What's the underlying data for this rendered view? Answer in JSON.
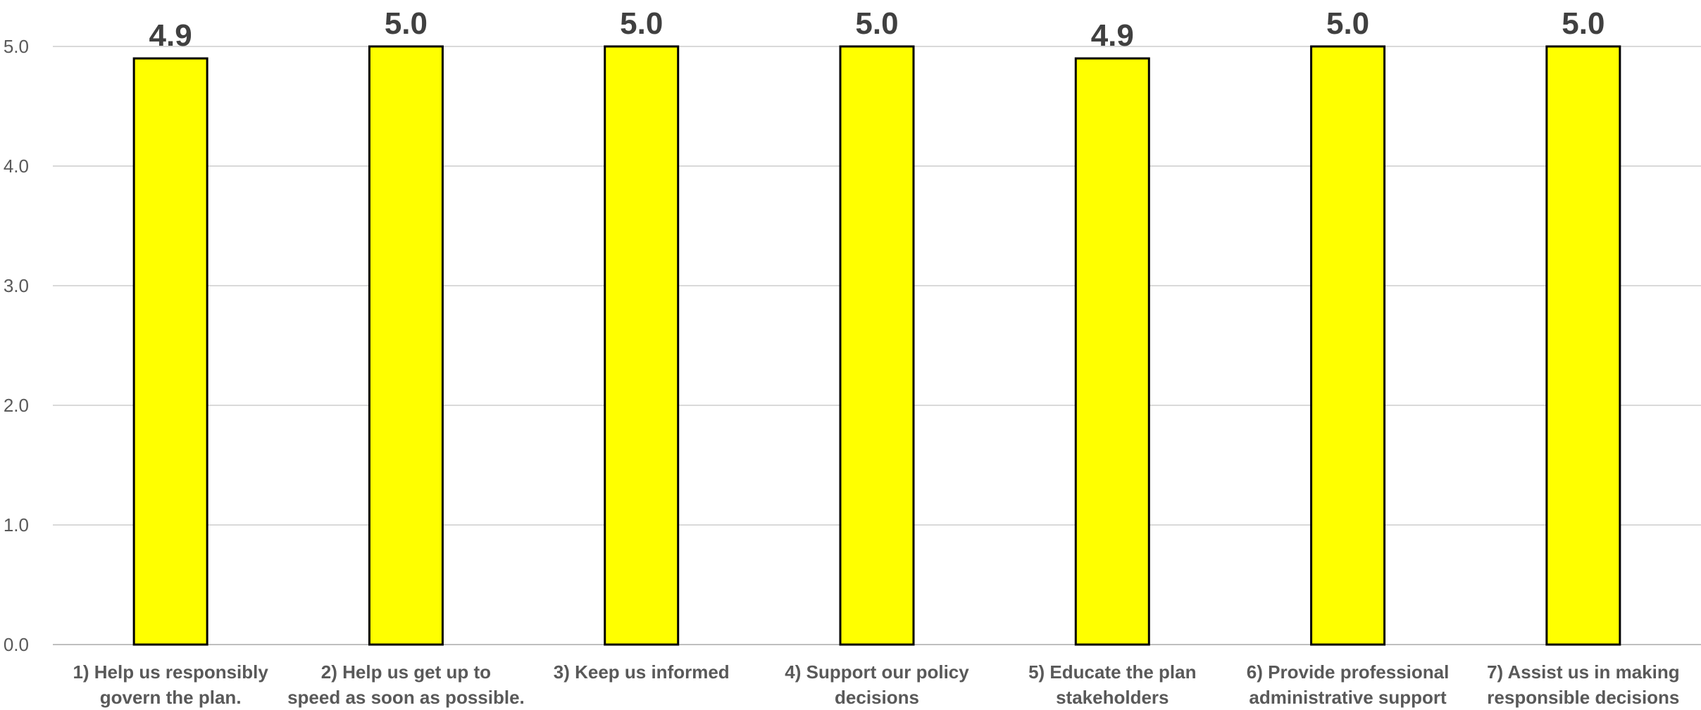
{
  "chart_data": {
    "type": "bar",
    "categories": [
      [
        "1)  Help us responsibly",
        "govern the plan."
      ],
      [
        "2)  Help us get up to",
        "speed as soon as possible."
      ],
      [
        "3)  Keep us informed"
      ],
      [
        "4)  Support our policy",
        "decisions"
      ],
      [
        "5)  Educate the plan",
        "stakeholders"
      ],
      [
        "6)  Provide professional",
        "administrative support"
      ],
      [
        "7)  Assist us in making",
        "responsible decisions"
      ]
    ],
    "values": [
      4.9,
      5.0,
      5.0,
      5.0,
      4.9,
      5.0,
      5.0
    ],
    "data_labels": [
      "4.9",
      "5.0",
      "5.0",
      "5.0",
      "4.9",
      "5.0",
      "5.0"
    ],
    "y_ticks": [
      "0.0",
      "1.0",
      "2.0",
      "3.0",
      "4.0",
      "5.0"
    ],
    "ylim": [
      0,
      5
    ],
    "grid": true,
    "legend": "none",
    "title": "",
    "xlabel": "",
    "ylabel": "",
    "colors": {
      "bar_fill": "#FFFF00",
      "bar_stroke": "#000000",
      "grid": "#D9D9D9",
      "axis": "#BFBFBF",
      "tick_text": "#595959",
      "data_label_text": "#404040"
    }
  }
}
